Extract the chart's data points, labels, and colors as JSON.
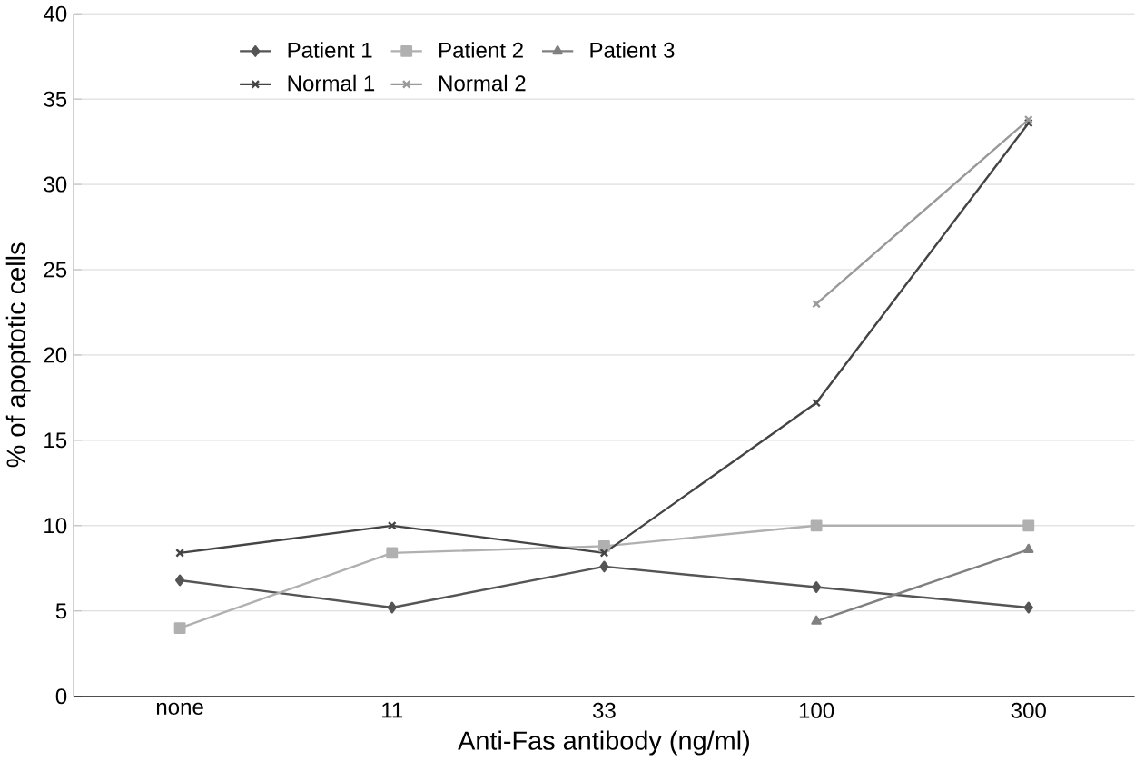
{
  "chart_data": {
    "type": "line",
    "xlabel": "Anti-Fas antibody (ng/ml)",
    "ylabel": "% of apoptotic cells",
    "categories": [
      "none",
      "11",
      "33",
      "100",
      "300"
    ],
    "ylim": [
      0,
      40
    ],
    "yticks": [
      0,
      5,
      10,
      15,
      20,
      25,
      30,
      35,
      40
    ],
    "grid": "y",
    "legend": "top left",
    "series": [
      {
        "name": "Patient 1",
        "color": "#555555",
        "marker": "diamond",
        "values": [
          6.8,
          5.2,
          7.6,
          6.4,
          5.2
        ]
      },
      {
        "name": "Patient 2",
        "color": "#b0b0b0",
        "marker": "square",
        "values": [
          4.0,
          8.4,
          8.8,
          10.0,
          10.0
        ]
      },
      {
        "name": "Patient 3",
        "color": "#808080",
        "marker": "triangle",
        "values": [
          null,
          null,
          null,
          4.4,
          8.6
        ]
      },
      {
        "name": "Normal 1",
        "color": "#444444",
        "marker": "cross",
        "values": [
          8.4,
          10.0,
          8.4,
          17.2,
          33.6
        ]
      },
      {
        "name": "Normal 2",
        "color": "#999999",
        "marker": "cross",
        "values": [
          null,
          null,
          null,
          23.0,
          33.8
        ]
      }
    ]
  }
}
